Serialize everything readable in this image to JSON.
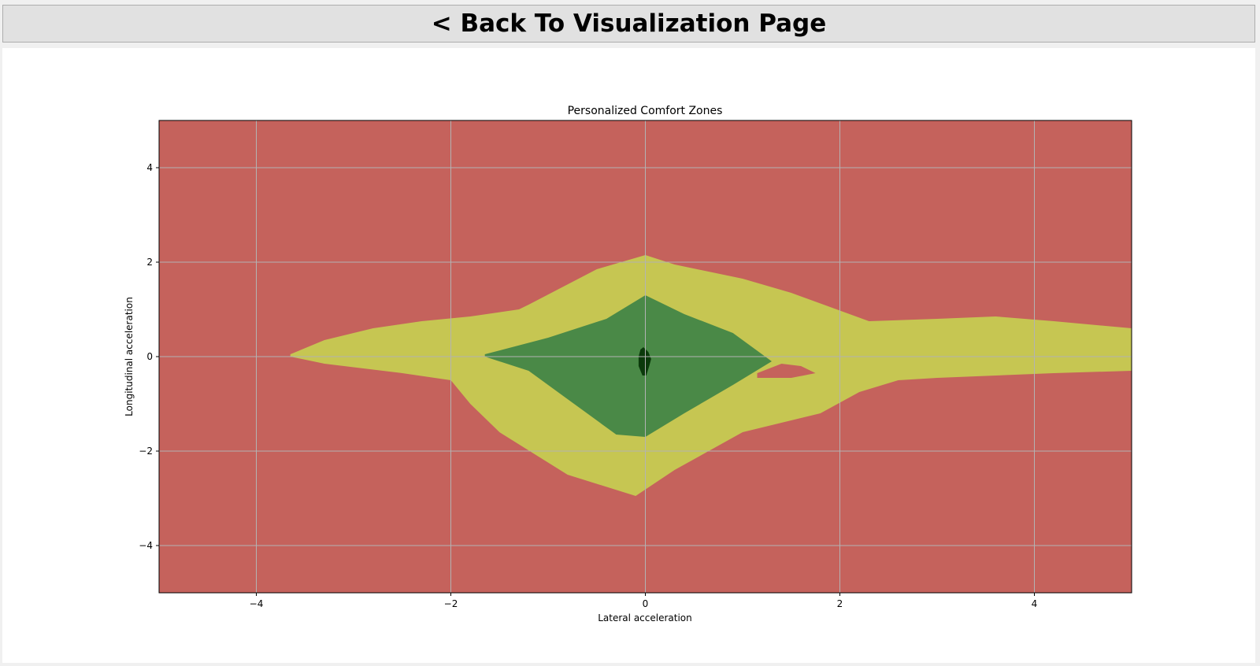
{
  "back_button": {
    "label": "< Back To Visualization Page"
  },
  "chart_data": {
    "type": "heatmap",
    "title": "Personalized Comfort Zones",
    "xlabel": "Lateral acceleration",
    "ylabel": "Longitudinal acceleration",
    "xlim": [
      -5,
      5
    ],
    "ylim": [
      -5,
      5
    ],
    "xticks": [
      -4,
      -2,
      0,
      2,
      4
    ],
    "yticks": [
      -4,
      -2,
      0,
      2,
      4
    ],
    "xtick_labels": [
      "−4",
      "−2",
      "0",
      "2",
      "4"
    ],
    "ytick_labels": [
      "−4",
      "−2",
      "0",
      "2",
      "4"
    ],
    "grid": true,
    "colors": {
      "uncomfortable": "#c5625c",
      "moderate": "#c6c652",
      "comfortable": "#4a8947",
      "center": "#0b3a0b",
      "grid": "#b3b3b3"
    },
    "zones": [
      {
        "level": "moderate",
        "boundary": [
          [
            -3.65,
            0.05
          ],
          [
            -3.3,
            0.35
          ],
          [
            -2.8,
            0.6
          ],
          [
            -2.3,
            0.75
          ],
          [
            -1.8,
            0.85
          ],
          [
            -1.3,
            1.0
          ],
          [
            -1.2,
            1.1
          ],
          [
            -0.5,
            1.85
          ],
          [
            0.0,
            2.15
          ],
          [
            0.3,
            1.95
          ],
          [
            1.0,
            1.65
          ],
          [
            1.5,
            1.35
          ],
          [
            2.3,
            0.75
          ],
          [
            3.0,
            0.8
          ],
          [
            3.6,
            0.85
          ],
          [
            4.2,
            0.75
          ],
          [
            5.0,
            0.6
          ],
          [
            5.0,
            -0.3
          ],
          [
            4.2,
            -0.35
          ],
          [
            3.0,
            -0.45
          ],
          [
            2.6,
            -0.5
          ],
          [
            2.2,
            -0.75
          ],
          [
            1.8,
            -1.2
          ],
          [
            1.0,
            -1.6
          ],
          [
            0.3,
            -2.4
          ],
          [
            -0.1,
            -2.95
          ],
          [
            -0.8,
            -2.5
          ],
          [
            -1.5,
            -1.6
          ],
          [
            -1.8,
            -1.0
          ],
          [
            -2.0,
            -0.5
          ],
          [
            -2.5,
            -0.35
          ],
          [
            -3.3,
            -0.15
          ],
          [
            -3.65,
            0.0
          ]
        ]
      },
      {
        "level": "uncomfortable",
        "boundary": [
          [
            1.15,
            -0.35
          ],
          [
            1.4,
            -0.15
          ],
          [
            1.6,
            -0.2
          ],
          [
            1.75,
            -0.35
          ],
          [
            1.5,
            -0.45
          ],
          [
            1.15,
            -0.45
          ]
        ]
      },
      {
        "level": "comfortable",
        "boundary": [
          [
            -1.65,
            0.05
          ],
          [
            -1.0,
            0.4
          ],
          [
            -0.4,
            0.8
          ],
          [
            0.0,
            1.3
          ],
          [
            0.4,
            0.9
          ],
          [
            0.9,
            0.5
          ],
          [
            1.3,
            -0.1
          ],
          [
            0.9,
            -0.6
          ],
          [
            0.4,
            -1.2
          ],
          [
            0.0,
            -1.7
          ],
          [
            -0.3,
            -1.65
          ],
          [
            -0.8,
            -0.9
          ],
          [
            -1.2,
            -0.3
          ],
          [
            -1.65,
            0.0
          ]
        ]
      },
      {
        "level": "center",
        "boundary": [
          [
            -0.02,
            0.2
          ],
          [
            0.03,
            0.1
          ],
          [
            0.06,
            -0.05
          ],
          [
            0.04,
            -0.2
          ],
          [
            0.01,
            -0.4
          ],
          [
            -0.03,
            -0.4
          ],
          [
            -0.07,
            -0.2
          ],
          [
            -0.07,
            0.0
          ],
          [
            -0.05,
            0.15
          ]
        ]
      }
    ]
  }
}
